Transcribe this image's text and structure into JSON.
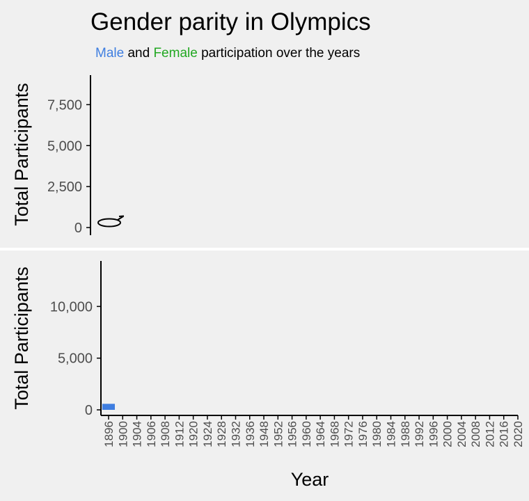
{
  "title": "Gender parity in Olympics",
  "subtitle": {
    "male_word": "Male",
    "and_word": " and ",
    "female_word": "Female",
    "rest": " participation over the years"
  },
  "colors": {
    "male": "#3f7ee0",
    "female": "#22a822",
    "panel_bg": "#f0f0f0",
    "axis": "#000000",
    "tick_label": "#4d4d4d"
  },
  "chart_data": [
    {
      "type": "bar",
      "panel": "top",
      "ylabel": "Total Participants",
      "ylim": [
        0,
        9300
      ],
      "yticks": [
        0,
        2500,
        5000,
        7500
      ],
      "ytick_labels": [
        "0",
        "2,500",
        "5,000",
        "7,500"
      ],
      "grid": false,
      "annotation_icon": "male-symbol-icon",
      "series": []
    },
    {
      "type": "bar",
      "panel": "bottom",
      "xlabel": "Year",
      "ylabel": "Total Participants",
      "ylim": [
        0,
        14400
      ],
      "yticks": [
        0,
        5000,
        10000
      ],
      "ytick_labels": [
        "0",
        "5,000",
        "10,000"
      ],
      "grid": false,
      "categories": [
        "1896",
        "1900",
        "1904",
        "1906",
        "1908",
        "1912",
        "1920",
        "1924",
        "1928",
        "1932",
        "1936",
        "1948",
        "1952",
        "1956",
        "1960",
        "1964",
        "1968",
        "1972",
        "1976",
        "1980",
        "1984",
        "1988",
        "1992",
        "1996",
        "2000",
        "2004",
        "2008",
        "2012",
        "2016",
        "2020"
      ],
      "series": [
        {
          "color": "#3f7ee0",
          "values": [
            380,
            null,
            null,
            null,
            null,
            null,
            null,
            null,
            null,
            null,
            null,
            null,
            null,
            null,
            null,
            null,
            null,
            null,
            null,
            null,
            null,
            null,
            null,
            null,
            null,
            null,
            null,
            null,
            null,
            null
          ]
        }
      ]
    }
  ]
}
